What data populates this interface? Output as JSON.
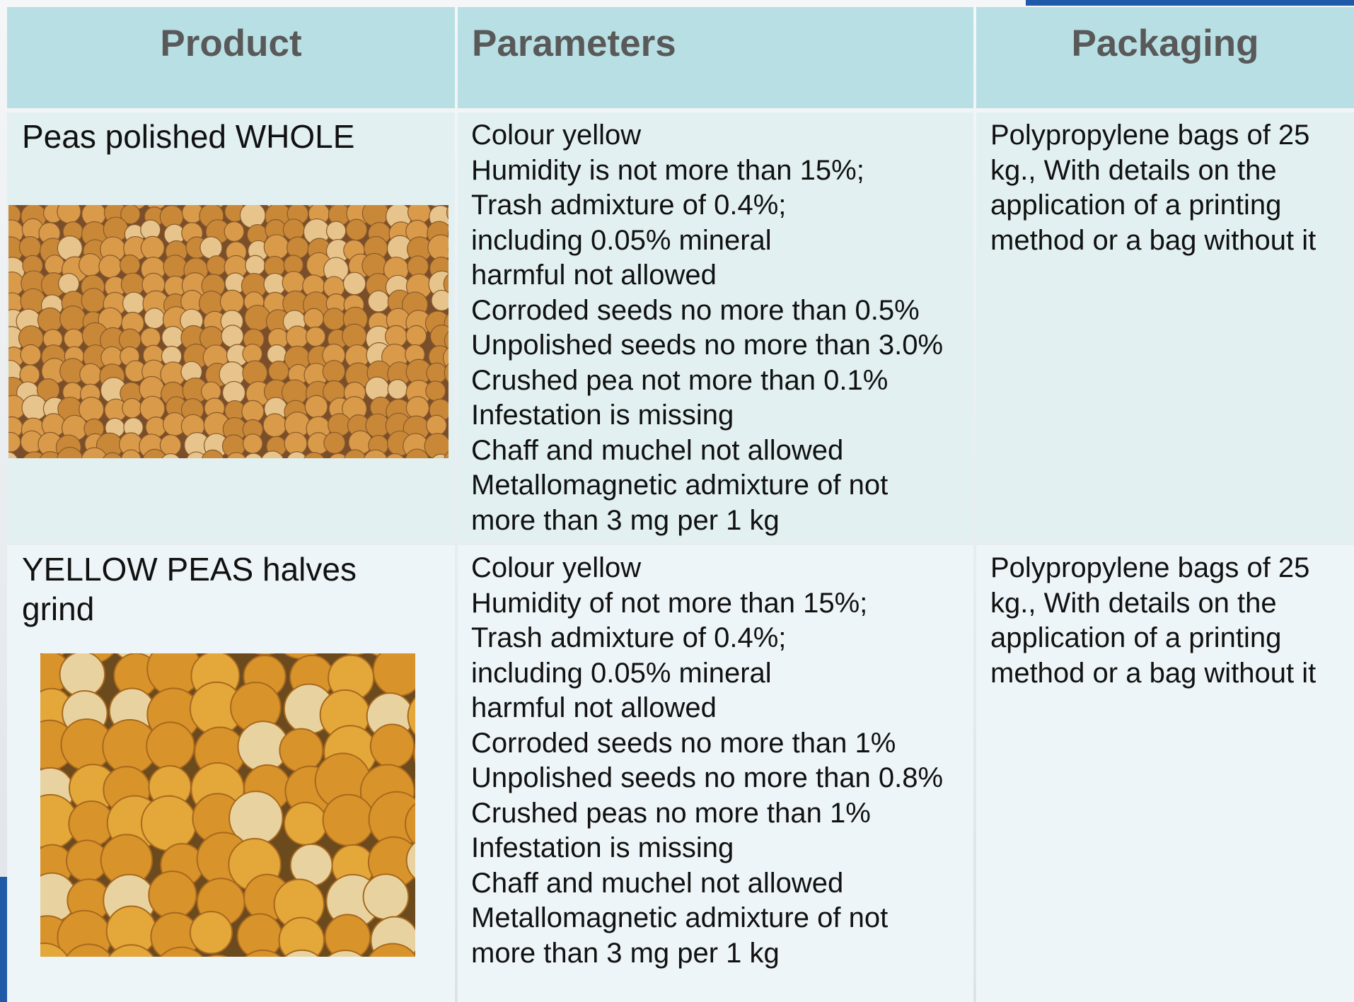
{
  "header": {
    "columns": [
      "Product",
      "Parameters",
      "Packaging"
    ]
  },
  "table": {
    "rows": [
      {
        "product": [
          "Peas polished WHOLE"
        ],
        "parameters": [
          "Colour yellow",
          "Humidity is not more than 15%;",
          "Trash admixture of 0.4%;",
          "including 0.05% mineral",
          "harmful not allowed",
          "Corroded seeds no more than 0.5%",
          "Unpolished seeds no more than 3.0%",
          "Crushed pea not more than 0.1%",
          "Infestation is missing",
          "Chaff and muchel not allowed",
          "Metallomagnetic admixture of not",
          "more than 3 mg per 1 kg"
        ],
        "packaging": [
          "Polypropylene bags of 25",
          "kg., With details on the",
          "application of a printing",
          "method or a bag without it"
        ]
      },
      {
        "product": [
          "YELLOW PEAS halves",
          "grind"
        ],
        "parameters": [
          "Colour yellow",
          "Humidity of not more than 15%;",
          "Trash admixture of 0.4%;",
          "including 0.05% mineral",
          "harmful not allowed",
          "Corroded seeds no more than 1%",
          "Unpolished seeds no more than 0.8%",
          "Crushed peas no more than 1%",
          "Infestation is missing",
          "Chaff and muchel not allowed",
          "Metallomagnetic admixture of not",
          "more than 3 mg per 1 kg"
        ],
        "packaging": [
          "Polypropylene bags of 25",
          "kg., With details on the",
          "application of a printing",
          "method or a bag without it"
        ]
      }
    ]
  }
}
